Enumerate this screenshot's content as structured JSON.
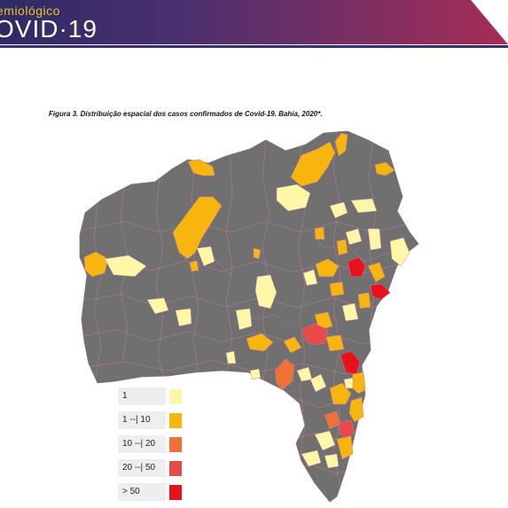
{
  "header": {
    "line1": "emiológico",
    "line2": "OVID·19"
  },
  "figure": {
    "caption": "Figura 3. Distribuição espacial dos casos confirmados de Covid-19. Bahia, 2020*."
  },
  "colors": {
    "none": "#707070",
    "c1": "#fff7a8",
    "c2": "#f7b50e",
    "c3": "#ef7133",
    "c4": "#e84a4a",
    "c5": "#e8121c",
    "border": "#c77a9a"
  },
  "legend": {
    "items": [
      {
        "label": "1",
        "color": "#fff7a8"
      },
      {
        "label": "1 --| 10",
        "color": "#f7b50e"
      },
      {
        "label": "10 --| 20",
        "color": "#ef7133"
      },
      {
        "label": "20 --| 50",
        "color": "#e84a4a"
      },
      {
        "label": "> 50",
        "color": "#e8121c"
      }
    ]
  }
}
